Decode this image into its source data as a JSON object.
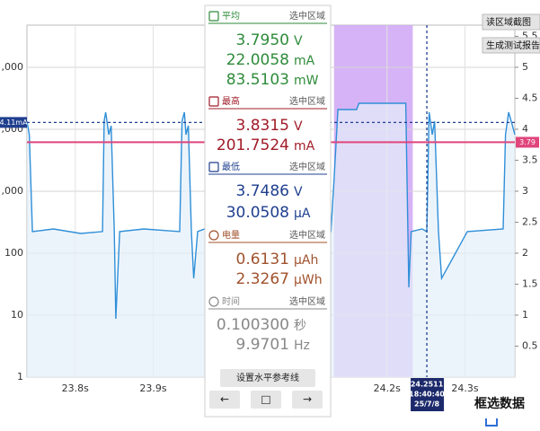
{
  "chart_data": {
    "type": "line",
    "color": "#2f8fd8",
    "area_color": "#e4f0fa",
    "yscale": "log",
    "x": [
      23.738,
      23.741,
      23.745,
      23.772,
      23.807,
      23.835,
      23.837,
      23.839,
      23.843,
      23.846,
      23.85,
      23.852,
      23.857,
      23.888,
      23.934,
      23.937,
      23.94,
      23.942,
      23.945,
      23.949,
      23.952,
      23.957,
      23.966,
      24.128,
      24.132,
      24.137,
      24.161,
      24.164,
      24.224,
      24.228,
      24.231,
      24.245,
      24.251,
      24.254,
      24.258,
      24.261,
      24.266,
      24.27,
      24.303,
      24.349,
      24.352,
      24.356,
      24.361,
      24.364
    ],
    "values": [
      13500,
      8190,
      223,
      246,
      208,
      223,
      13500,
      18800,
      8190,
      11400,
      223,
      8.75,
      223,
      246,
      223,
      13500,
      18800,
      8190,
      11400,
      223,
      39.3,
      223,
      246,
      223,
      1540,
      20800,
      20800,
      26300,
      26300,
      28.1,
      223,
      246,
      223,
      18800,
      8190,
      13500,
      223,
      39.3,
      223,
      246,
      8190,
      18800,
      11400,
      8190
    ],
    "xlim": [
      23.738,
      24.364
    ],
    "xticks": [
      {
        "value": 23.8,
        "label": "23.8s"
      },
      {
        "value": 23.9,
        "label": "23.9s"
      },
      {
        "value": 24.2,
        "label": "24.2s"
      },
      {
        "value": 24.3,
        "label": "24.3s"
      }
    ],
    "ylim": [
      1,
      479000
    ],
    "yticks": [
      1,
      10,
      100,
      {
        "value": 1000,
        "label": ",000"
      },
      {
        "value": 10000,
        "label": ",000"
      },
      {
        "value": 100000,
        "label": ",000"
      }
    ],
    "y2lim": [
      0,
      5.68
    ],
    "y2ticks": [
      0.5,
      1,
      1.5,
      2,
      2.5,
      3,
      3.5,
      4,
      4.5,
      5,
      5.5
    ],
    "reference_lines": [
      {
        "value": 4.11,
        "label": "4.11mA",
        "color": "#1f3f8f",
        "dashed": true
      },
      {
        "value": 3.79,
        "label": "3.79",
        "color": "#e0457b",
        "dashed": false
      }
    ],
    "selection": [
      24.132,
      24.233
    ],
    "selection_color": "#cfa6f5",
    "cursor": {
      "value": 24.2511,
      "label": [
        "24.2511",
        "18:40:40",
        "25/7/8"
      ]
    }
  },
  "panel": {
    "sections": [
      {
        "title": "平均",
        "scope": "选中区域",
        "color": "#2e8b3a",
        "rows": [
          {
            "value": "3.7950",
            "unit": "V"
          },
          {
            "value": "22.0058",
            "unit": "mA"
          },
          {
            "value": "83.5103",
            "unit": "mW"
          }
        ]
      },
      {
        "title": "最高",
        "scope": "选中区域",
        "color": "#a01c28",
        "rows": [
          {
            "value": "3.8315",
            "unit": "V"
          },
          {
            "value": "201.7524",
            "unit": "mA"
          }
        ]
      },
      {
        "title": "最低",
        "scope": "选中区域",
        "color": "#1f3f8f",
        "rows": [
          {
            "value": "3.7486",
            "unit": "V"
          },
          {
            "value": "30.0508",
            "unit": "µA"
          }
        ]
      },
      {
        "title": "电量",
        "scope": "选中区域",
        "color": "#a0522d",
        "rows": [
          {
            "value": "0.6131",
            "unit": "µAh"
          },
          {
            "value": "2.3267",
            "unit": "µWh"
          }
        ]
      },
      {
        "title": "时间",
        "scope": "选中区域",
        "color": "#888888",
        "rows": [
          {
            "value": "0.100300",
            "unit": "秒"
          },
          {
            "value": "9.9701",
            "unit": "Hz"
          }
        ]
      }
    ],
    "reference_button": "设置水平参考线",
    "nav": [
      "←",
      "□",
      "→"
    ]
  },
  "toolbar": [
    "读区域截图",
    "生成测试报告"
  ],
  "action": "框选数据"
}
